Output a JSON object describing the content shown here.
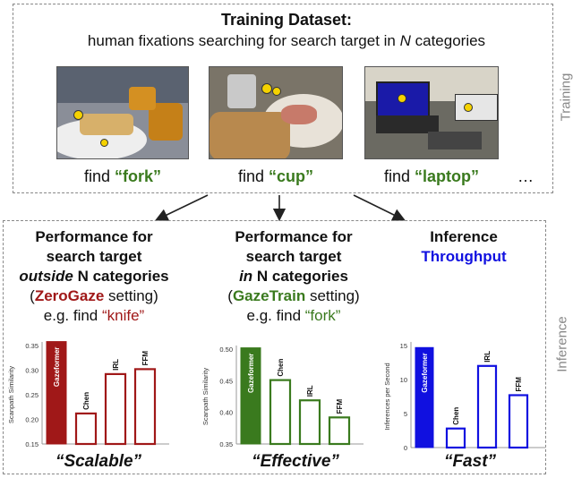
{
  "training": {
    "title": "Training Dataset:",
    "subtitle_prefix": "human fixations searching for search target in ",
    "subtitle_n": "N",
    "subtitle_suffix": " categories",
    "side_label": "Training",
    "finds": [
      {
        "prefix": "find ",
        "target": "“fork”"
      },
      {
        "prefix": "find ",
        "target": "“cup”"
      },
      {
        "prefix": "find ",
        "target": "“laptop”"
      }
    ],
    "ellipsis": "…"
  },
  "inference": {
    "side_label": "Inference",
    "columns": [
      {
        "line1": "Performance for",
        "line2": "search target",
        "line3_em": "outside",
        "line3_rest": " N categories",
        "setting_open": "(",
        "setting_name": "ZeroGaze",
        "setting_rest": " setting)",
        "example_prefix": "e.g. find ",
        "example_target": "“knife”",
        "slogan": "“Scalable”"
      },
      {
        "line1": "Performance for",
        "line2": "search target",
        "line3_em": "in",
        "line3_rest": " N categories",
        "setting_open": "(",
        "setting_name": "GazeTrain",
        "setting_rest": " setting)",
        "example_prefix": "e.g. find ",
        "example_target": "“fork”",
        "slogan": "“Effective”"
      },
      {
        "line1": "Inference",
        "line2": "Throughput",
        "slogan": "“Fast”"
      }
    ]
  },
  "colors": {
    "zerogaze": "#a01818",
    "gazetrain": "#3a7a1e",
    "throughput": "#1010e0",
    "find_green": "#3a7a1e"
  },
  "chart_data": [
    {
      "type": "bar",
      "ylabel": "Scanpath Similarity",
      "ylim": [
        0.15,
        0.35
      ],
      "yticks": [
        "0.15",
        "0.20",
        "0.25",
        "0.30",
        "0.35"
      ],
      "categories": [
        "Gazeformer",
        "Chen",
        "IRL",
        "FFM"
      ],
      "values": [
        0.358,
        0.212,
        0.292,
        0.302
      ],
      "color": "#a01818"
    },
    {
      "type": "bar",
      "ylabel": "Scanpath Similarity",
      "ylim": [
        0.35,
        0.5
      ],
      "yticks": [
        "0.35",
        "0.40",
        "0.45",
        "0.50"
      ],
      "categories": [
        "Gazeformer",
        "Chen",
        "IRL",
        "FFM"
      ],
      "values": [
        0.502,
        0.451,
        0.419,
        0.392
      ],
      "color": "#3a7a1e"
    },
    {
      "type": "bar",
      "ylabel": "Inferences per Second",
      "ylim": [
        0,
        15
      ],
      "yticks": [
        "0",
        "5",
        "10",
        "15"
      ],
      "categories": [
        "Gazeformer",
        "Chen",
        "IRL",
        "FFM"
      ],
      "values": [
        14.7,
        2.8,
        12.0,
        7.7
      ],
      "color": "#1010e0"
    }
  ]
}
